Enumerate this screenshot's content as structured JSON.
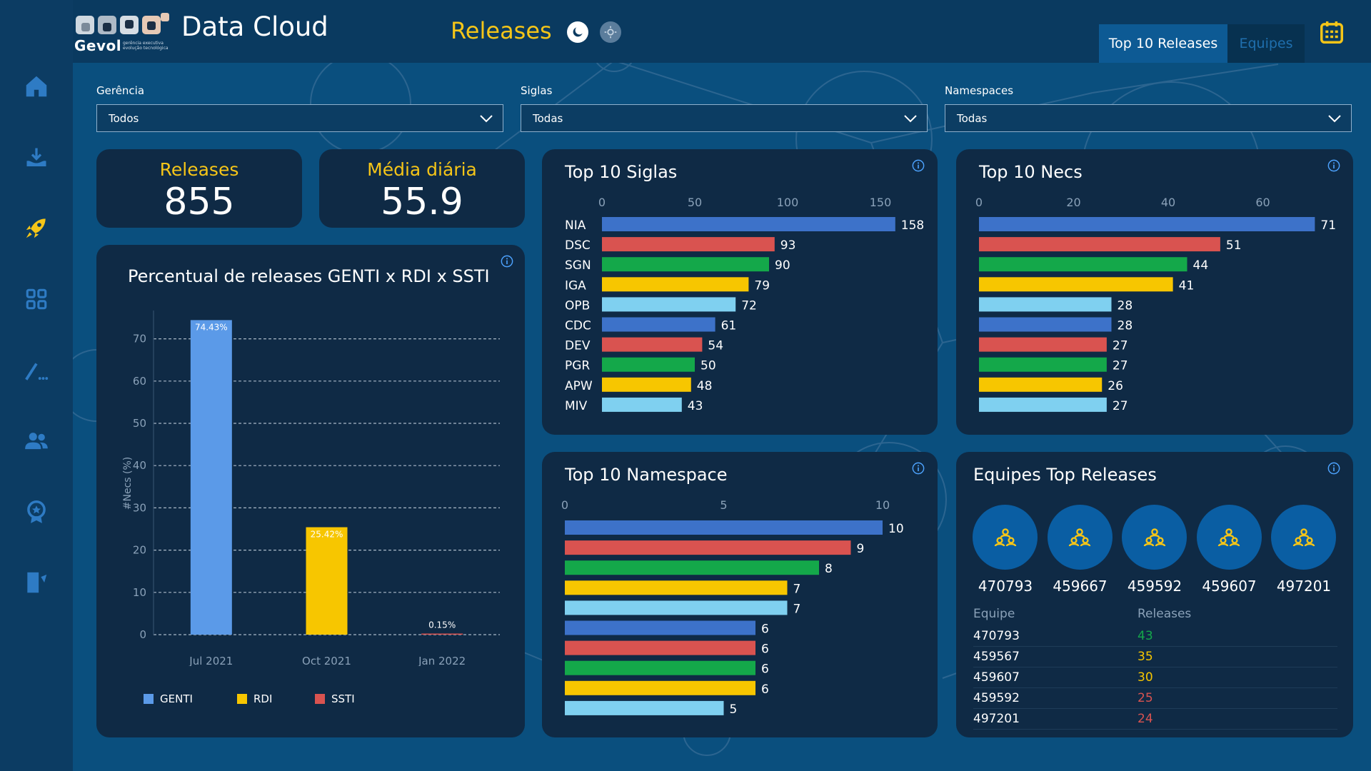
{
  "header": {
    "logo_text": "Gevol",
    "logo_subtitle_1": "gerência executiva",
    "logo_subtitle_2": "evolução tecnológica",
    "app_title": "Data Cloud",
    "page_title": "Releases",
    "tabs": [
      {
        "label": "Top 10 Releases",
        "active": true
      },
      {
        "label": "Equipes",
        "active": false
      }
    ]
  },
  "sidebar": {
    "items": [
      {
        "icon": "home-icon",
        "active": false
      },
      {
        "icon": "download-tray-icon",
        "active": false
      },
      {
        "icon": "rocket-icon",
        "active": true
      },
      {
        "icon": "grid-apps-icon",
        "active": false
      },
      {
        "icon": "pen-edit-icon",
        "active": false
      },
      {
        "icon": "users-icon",
        "active": false
      },
      {
        "icon": "award-badge-icon",
        "active": false
      },
      {
        "icon": "exit-door-icon",
        "active": false
      }
    ]
  },
  "filters": [
    {
      "label": "Gerência",
      "value": "Todos"
    },
    {
      "label": "Siglas",
      "value": "Todas"
    },
    {
      "label": "Namespaces",
      "value": "Todas"
    }
  ],
  "kpis": {
    "releases": {
      "label": "Releases",
      "value": "855"
    },
    "media": {
      "label": "Média diária",
      "value": "55.9"
    }
  },
  "colors": {
    "blue": "#3d72c9",
    "red": "#d95350",
    "green": "#14a84a",
    "yellow": "#f7c600",
    "light_blue": "#7fd0f0",
    "genti": "#5b9ae8",
    "accent_yellow": "#f5c518",
    "card_bg": "#0f2a45"
  },
  "chart_data": [
    {
      "id": "percentual",
      "type": "bar",
      "title": "Percentual de releases GENTI x RDI x SSTI",
      "ylabel": "#Necs (%)",
      "xlabel": "",
      "ylim": [
        0,
        75
      ],
      "yticks": [
        0,
        10,
        20,
        30,
        40,
        50,
        60,
        70
      ],
      "grid": true,
      "categories": [
        "Jul 2021",
        "Oct 2021",
        "Jan 2022"
      ],
      "series": [
        {
          "name": "GENTI",
          "category": "Jul 2021",
          "value": 74.43,
          "label": "74.43%",
          "color": "#5b9ae8"
        },
        {
          "name": "RDI",
          "category": "Oct 2021",
          "value": 25.42,
          "label": "25.42%",
          "color": "#f7c600"
        },
        {
          "name": "SSTI",
          "category": "Jan 2022",
          "value": 0.15,
          "label": "0.15%",
          "color": "#d95350"
        }
      ],
      "legend": [
        "GENTI",
        "RDI",
        "SSTI"
      ],
      "legend_position": "bottom-left"
    },
    {
      "id": "siglas",
      "type": "bar",
      "orientation": "horizontal",
      "title": "Top 10 Siglas",
      "xlim": [
        0,
        160
      ],
      "xticks": [
        0,
        50,
        100,
        150
      ],
      "categories": [
        "NIA",
        "DSC",
        "SGN",
        "IGA",
        "OPB",
        "CDC",
        "DEV",
        "PGR",
        "APW",
        "MIV"
      ],
      "values": [
        158,
        93,
        90,
        79,
        72,
        61,
        54,
        50,
        48,
        43
      ]
    },
    {
      "id": "necs",
      "type": "bar",
      "orientation": "horizontal",
      "title": "Top 10 Necs",
      "xlim": [
        0,
        72
      ],
      "xticks": [
        0,
        20,
        40,
        60
      ],
      "values": [
        71,
        51,
        44,
        41,
        28,
        28,
        27,
        27,
        26,
        27
      ]
    },
    {
      "id": "namespace",
      "type": "bar",
      "orientation": "horizontal",
      "title": "Top 10 Namespace",
      "xlim": [
        0,
        10
      ],
      "xticks": [
        0,
        5,
        10
      ],
      "values": [
        10,
        9,
        8,
        7,
        7,
        6,
        6,
        6,
        6,
        5
      ]
    }
  ],
  "teams": {
    "title": "Equipes Top Releases",
    "circles": [
      "470793",
      "459667",
      "459592",
      "459607",
      "497201"
    ],
    "table": {
      "headers": [
        "Equipe",
        "Releases"
      ],
      "rows": [
        {
          "equipe": "470793",
          "releases": "43",
          "color": "#14a84a"
        },
        {
          "equipe": "459567",
          "releases": "35",
          "color": "#f7c600"
        },
        {
          "equipe": "459607",
          "releases": "30",
          "color": "#f7c600"
        },
        {
          "equipe": "459592",
          "releases": "25",
          "color": "#d95350"
        },
        {
          "equipe": "497201",
          "releases": "24",
          "color": "#d95350"
        }
      ]
    }
  }
}
